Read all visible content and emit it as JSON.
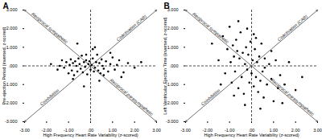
{
  "chart_data": [
    {
      "type": "scatter",
      "title": "A",
      "x_label": "High Frequency Heart Rate Variability (z-scored)",
      "y_label": "Pre-ejection Period (inversed, z-scored)",
      "annotations": [
        "Reciprocal sympathetic",
        "Coactivation (CAB)",
        "Coinhibition",
        "Reciprocal parasympathetic"
      ],
      "color": "#000000",
      "marker": "circle",
      "x": [
        -1.8,
        -1.5,
        -1.3,
        -1.2,
        -1.1,
        -1.0,
        -0.95,
        -0.9,
        -0.85,
        -0.8,
        -0.75,
        -0.7,
        -0.65,
        -0.6,
        -0.55,
        -0.5,
        -0.45,
        -0.4,
        -0.35,
        -0.3,
        -0.25,
        -0.2,
        -0.15,
        -0.1,
        -0.05,
        0.0,
        0.05,
        0.1,
        0.15,
        0.2,
        0.25,
        0.3,
        0.35,
        0.4,
        0.45,
        0.5,
        0.55,
        0.6,
        0.7,
        0.8,
        0.9,
        1.0,
        1.1,
        1.2,
        1.3,
        1.5,
        1.7,
        2.0,
        2.3,
        -0.6,
        -0.3,
        0.1,
        0.4,
        -1.4,
        0.9,
        1.4,
        -0.8,
        0.2,
        0.6,
        -0.2
      ],
      "values": [
        0.1,
        -0.2,
        0.3,
        -0.1,
        0.2,
        -0.4,
        0.05,
        0.35,
        -0.25,
        0.15,
        -0.5,
        0.25,
        0.0,
        -0.3,
        0.4,
        0.1,
        -0.15,
        0.55,
        -0.35,
        0.2,
        -0.05,
        0.3,
        -0.45,
        0.1,
        0.25,
        -0.2,
        0.05,
        0.4,
        -0.3,
        -0.1,
        0.2,
        0.6,
        -0.25,
        0.15,
        -0.4,
        0.35,
        0.0,
        -0.15,
        0.25,
        -0.3,
        0.1,
        0.45,
        -0.2,
        0.05,
        0.3,
        -0.35,
        0.15,
        -0.1,
        0.2,
        1.2,
        -1.1,
        0.9,
        -0.8,
        0.0,
        0.7,
        -0.6,
        -0.7,
        1.0,
        -0.5,
        0.6
      ],
      "xlim": [
        -3,
        3
      ],
      "xticks": [
        {
          "value": -3,
          "label": "-3.00"
        },
        {
          "value": -2,
          "label": "-2.00"
        },
        {
          "value": -1,
          "label": "-1.00"
        },
        {
          "value": 0,
          "label": ".00"
        },
        {
          "value": 1,
          "label": "1.00"
        },
        {
          "value": 2,
          "label": "2.00"
        },
        {
          "value": 3,
          "label": "3.00"
        }
      ],
      "ylim": [
        -3,
        3
      ],
      "yticks": [
        {
          "value": -3,
          "label": "-3.000"
        },
        {
          "value": -2,
          "label": "-2.000"
        },
        {
          "value": -1,
          "label": "-1.000"
        },
        {
          "value": 0,
          "label": ".000"
        },
        {
          "value": 1,
          "label": "1.000"
        },
        {
          "value": 2,
          "label": "2.000"
        },
        {
          "value": 3,
          "label": "3.000"
        }
      ]
    },
    {
      "type": "scatter",
      "title": "B",
      "x_label": "High Frequency Heart Rate Variability (z-scored)",
      "y_label": "Left Ventricular Ejection Time (inversed, z-scored)",
      "annotations": [
        "Reciprocal sympathetic",
        "Coactivation (CAB)",
        "Coinhibition",
        "Reciprocal parasympathetic"
      ],
      "color": "#000000",
      "marker": "circle",
      "x": [
        -1.8,
        -1.5,
        -1.3,
        -1.2,
        -1.1,
        -1.0,
        -0.95,
        -0.9,
        -0.85,
        -0.8,
        -0.75,
        -0.7,
        -0.65,
        -0.6,
        -0.55,
        -0.5,
        -0.45,
        -0.4,
        -0.35,
        -0.3,
        -0.25,
        -0.2,
        -0.15,
        -0.1,
        -0.05,
        0.0,
        0.05,
        0.1,
        0.15,
        0.2,
        0.25,
        0.3,
        0.35,
        0.4,
        0.45,
        0.5,
        0.55,
        0.6,
        0.7,
        0.8,
        0.9,
        1.0,
        1.1,
        1.2,
        1.3,
        1.5,
        1.7,
        2.0,
        2.3,
        -0.6,
        -0.3,
        0.1,
        0.4,
        -1.4,
        0.9,
        1.4,
        -0.8,
        0.2,
        0.6,
        -0.2
      ],
      "values": [
        1.2,
        0.3,
        1.6,
        -0.4,
        0.9,
        2.1,
        0.2,
        -0.9,
        1.1,
        0.5,
        -0.3,
        1.4,
        0.8,
        -1.2,
        0.4,
        1.8,
        -0.6,
        0.7,
        -1.5,
        0.1,
        1.0,
        -0.2,
        0.6,
        -0.9,
        1.3,
        -0.4,
        0.3,
        -1.1,
        0.9,
        -0.6,
        0.2,
        -1.4,
        0.5,
        -0.8,
        1.2,
        -0.3,
        -1.7,
        0.4,
        -1.0,
        0.1,
        -0.7,
        -1.9,
        0.3,
        -1.2,
        -0.5,
        -1.0,
        0.2,
        -1.3,
        -0.6,
        2.4,
        -2.1,
        1.7,
        -2.3,
        -1.0,
        0.8,
        -2.0,
        -1.6,
        1.5,
        -0.1,
        2.0
      ],
      "xlim": [
        -3,
        3
      ],
      "xticks": [
        {
          "value": -3,
          "label": "-3.00"
        },
        {
          "value": -2,
          "label": "-2.00"
        },
        {
          "value": -1,
          "label": "-1.00"
        },
        {
          "value": 0,
          "label": ".00"
        },
        {
          "value": 1,
          "label": "1.00"
        },
        {
          "value": 2,
          "label": "2.00"
        },
        {
          "value": 3,
          "label": "3.00"
        }
      ],
      "ylim": [
        -3,
        3
      ],
      "yticks": [
        {
          "value": -3,
          "label": "-3.000"
        },
        {
          "value": -2,
          "label": "-2.000"
        },
        {
          "value": -1,
          "label": "-1.000"
        },
        {
          "value": 0,
          "label": ".000"
        },
        {
          "value": 1,
          "label": "1.000"
        },
        {
          "value": 2,
          "label": "2.000"
        },
        {
          "value": 3,
          "label": "3.000"
        }
      ]
    }
  ]
}
